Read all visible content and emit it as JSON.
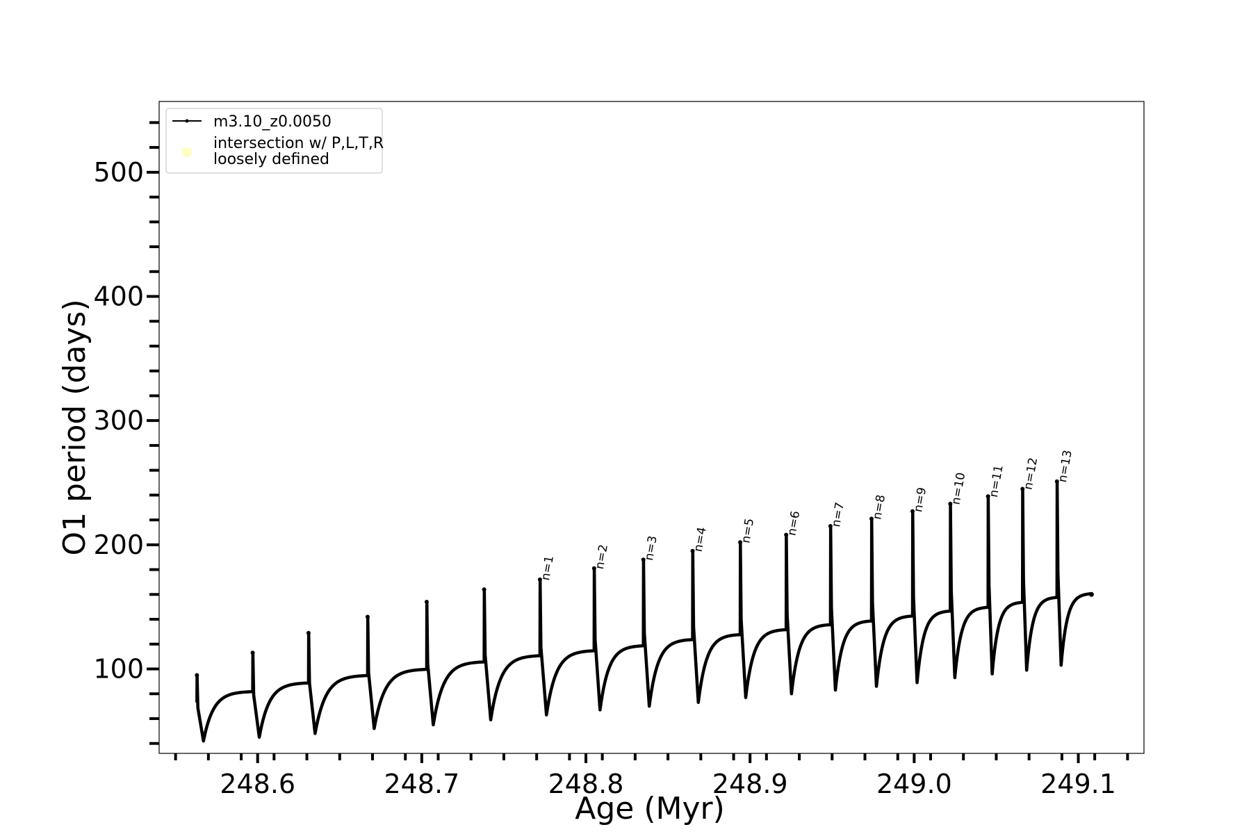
{
  "chart_data": {
    "type": "line",
    "xlabel": "Age (Myr)",
    "ylabel": "O1 period (days)",
    "xlim": [
      248.54,
      249.14
    ],
    "ylim": [
      32,
      557
    ],
    "x_major_ticks": [
      248.6,
      248.7,
      248.8,
      248.9,
      249.0,
      249.1
    ],
    "x_tick_labels": [
      "248.6",
      "248.7",
      "248.8",
      "248.9",
      "249.0",
      "249.1"
    ],
    "x_minor_step": 0.02,
    "y_major_ticks": [
      100,
      200,
      300,
      400,
      500
    ],
    "y_tick_labels": [
      "100",
      "200",
      "300",
      "400",
      "500"
    ],
    "y_minor_step": 20,
    "grid": false,
    "legend": {
      "position": "top-left",
      "entries": [
        {
          "label": "m3.10_z0.0050",
          "marker": "line"
        },
        {
          "label_lines": [
            "intersection w/ P,L,T,R",
            "loosely defined"
          ],
          "marker": "circle",
          "color": "#ffffc0"
        }
      ]
    },
    "series": [
      {
        "name": "m3.10_z0.0050",
        "color": "#000000",
        "start": [
          248.563,
          73
        ],
        "end": [
          249.108,
          160
        ],
        "pulses": [
          {
            "x": 248.563,
            "peak": 95,
            "min": 42,
            "plateau": 82
          },
          {
            "x": 248.597,
            "peak": 113,
            "min": 45,
            "plateau": 89
          },
          {
            "x": 248.631,
            "peak": 129,
            "min": 48,
            "plateau": 95
          },
          {
            "x": 248.667,
            "peak": 142,
            "min": 52,
            "plateau": 100
          },
          {
            "x": 248.703,
            "peak": 154,
            "min": 55,
            "plateau": 106
          },
          {
            "x": 248.738,
            "peak": 164,
            "min": 59,
            "plateau": 111
          },
          {
            "x": 248.772,
            "peak": 172,
            "min": 63,
            "plateau": 115,
            "label": "n=1"
          },
          {
            "x": 248.805,
            "peak": 181,
            "min": 67,
            "plateau": 119,
            "label": "n=2"
          },
          {
            "x": 248.835,
            "peak": 188,
            "min": 70,
            "plateau": 124,
            "label": "n=3"
          },
          {
            "x": 248.865,
            "peak": 195,
            "min": 73,
            "plateau": 128,
            "label": "n=4"
          },
          {
            "x": 248.894,
            "peak": 202,
            "min": 77,
            "plateau": 132,
            "label": "n=5"
          },
          {
            "x": 248.922,
            "peak": 208,
            "min": 80,
            "plateau": 136,
            "label": "n=6"
          },
          {
            "x": 248.949,
            "peak": 215,
            "min": 83,
            "plateau": 139,
            "label": "n=7"
          },
          {
            "x": 248.974,
            "peak": 221,
            "min": 86,
            "plateau": 143,
            "label": "n=8"
          },
          {
            "x": 248.999,
            "peak": 227,
            "min": 89,
            "plateau": 147,
            "label": "n=9"
          },
          {
            "x": 249.022,
            "peak": 233,
            "min": 93,
            "plateau": 150,
            "label": "n=10"
          },
          {
            "x": 249.045,
            "peak": 239,
            "min": 96,
            "plateau": 154,
            "label": "n=11"
          },
          {
            "x": 249.066,
            "peak": 245,
            "min": 99,
            "plateau": 158,
            "label": "n=12"
          },
          {
            "x": 249.087,
            "peak": 251,
            "min": 103,
            "plateau": 161,
            "label": "n=13"
          }
        ]
      }
    ]
  }
}
